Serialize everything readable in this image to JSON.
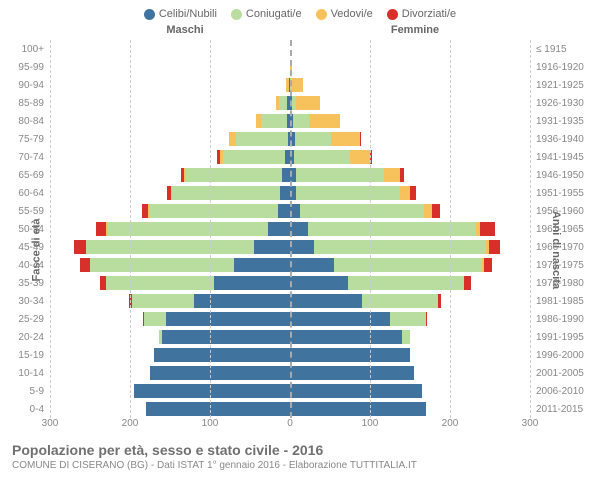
{
  "legend": [
    {
      "label": "Celibi/Nubili",
      "color": "#40739e"
    },
    {
      "label": "Coniugati/e",
      "color": "#b9dd9f"
    },
    {
      "label": "Vedovi/e",
      "color": "#f7c15b"
    },
    {
      "label": "Divorziati/e",
      "color": "#d7302b"
    }
  ],
  "headers": {
    "male": "Maschi",
    "female": "Femmine"
  },
  "axis": {
    "y_left_title": "Fasce di età",
    "y_right_title": "Anni di nascita",
    "x_max": 300,
    "x_ticks": [
      300,
      200,
      100,
      0,
      100,
      200,
      300
    ]
  },
  "colors": {
    "single": "#40739e",
    "married": "#b9dd9f",
    "widowed": "#f7c15b",
    "divorced": "#d7302b",
    "grid": "#cccccc",
    "center": "#aaaaaa",
    "bg": "#ffffff"
  },
  "footer": {
    "title": "Popolazione per età, sesso e stato civile - 2016",
    "subtitle": "COMUNE DI CISERANO (BG) - Dati ISTAT 1° gennaio 2016 - Elaborazione TUTTITALIA.IT"
  },
  "rows": [
    {
      "age": "100+",
      "year": "≤ 1915",
      "m": [
        0,
        0,
        0,
        0
      ],
      "f": [
        0,
        0,
        0,
        0
      ]
    },
    {
      "age": "95-99",
      "year": "1916-1920",
      "m": [
        0,
        0,
        0,
        0
      ],
      "f": [
        0,
        0,
        3,
        0
      ]
    },
    {
      "age": "90-94",
      "year": "1921-1925",
      "m": [
        1,
        0,
        4,
        0
      ],
      "f": [
        0,
        2,
        14,
        0
      ]
    },
    {
      "age": "85-89",
      "year": "1926-1930",
      "m": [
        4,
        10,
        4,
        0
      ],
      "f": [
        3,
        5,
        30,
        0
      ]
    },
    {
      "age": "80-84",
      "year": "1931-1935",
      "m": [
        4,
        32,
        7,
        0
      ],
      "f": [
        4,
        20,
        38,
        0
      ]
    },
    {
      "age": "75-79",
      "year": "1936-1940",
      "m": [
        3,
        65,
        8,
        0
      ],
      "f": [
        6,
        45,
        36,
        2
      ]
    },
    {
      "age": "70-74",
      "year": "1941-1945",
      "m": [
        6,
        78,
        4,
        3
      ],
      "f": [
        5,
        70,
        25,
        3
      ]
    },
    {
      "age": "65-69",
      "year": "1946-1950",
      "m": [
        10,
        120,
        2,
        4
      ],
      "f": [
        7,
        110,
        20,
        5
      ]
    },
    {
      "age": "60-64",
      "year": "1951-1955",
      "m": [
        12,
        135,
        2,
        5
      ],
      "f": [
        8,
        130,
        12,
        7
      ]
    },
    {
      "age": "55-59",
      "year": "1956-1960",
      "m": [
        15,
        160,
        2,
        8
      ],
      "f": [
        12,
        155,
        10,
        10
      ]
    },
    {
      "age": "50-54",
      "year": "1961-1965",
      "m": [
        28,
        200,
        2,
        12
      ],
      "f": [
        22,
        210,
        6,
        18
      ]
    },
    {
      "age": "45-49",
      "year": "1966-1970",
      "m": [
        45,
        210,
        0,
        15
      ],
      "f": [
        30,
        215,
        4,
        14
      ]
    },
    {
      "age": "40-44",
      "year": "1971-1975",
      "m": [
        70,
        180,
        0,
        12
      ],
      "f": [
        55,
        185,
        3,
        10
      ]
    },
    {
      "age": "35-39",
      "year": "1976-1980",
      "m": [
        95,
        135,
        0,
        7
      ],
      "f": [
        72,
        145,
        1,
        8
      ]
    },
    {
      "age": "30-34",
      "year": "1981-1985",
      "m": [
        120,
        78,
        0,
        3
      ],
      "f": [
        90,
        95,
        0,
        4
      ]
    },
    {
      "age": "25-29",
      "year": "1986-1990",
      "m": [
        155,
        28,
        0,
        1
      ],
      "f": [
        125,
        45,
        0,
        1
      ]
    },
    {
      "age": "20-24",
      "year": "1991-1995",
      "m": [
        160,
        4,
        0,
        0
      ],
      "f": [
        140,
        10,
        0,
        0
      ]
    },
    {
      "age": "15-19",
      "year": "1996-2000",
      "m": [
        170,
        0,
        0,
        0
      ],
      "f": [
        150,
        0,
        0,
        0
      ]
    },
    {
      "age": "10-14",
      "year": "2001-2005",
      "m": [
        175,
        0,
        0,
        0
      ],
      "f": [
        155,
        0,
        0,
        0
      ]
    },
    {
      "age": "5-9",
      "year": "2006-2010",
      "m": [
        195,
        0,
        0,
        0
      ],
      "f": [
        165,
        0,
        0,
        0
      ]
    },
    {
      "age": "0-4",
      "year": "2011-2015",
      "m": [
        180,
        0,
        0,
        0
      ],
      "f": [
        170,
        0,
        0,
        0
      ]
    }
  ],
  "style": {
    "bar_height_pct": 82,
    "row_count": 21,
    "font_tick": 10,
    "font_legend": 11,
    "font_title": 14,
    "font_sub": 10
  }
}
